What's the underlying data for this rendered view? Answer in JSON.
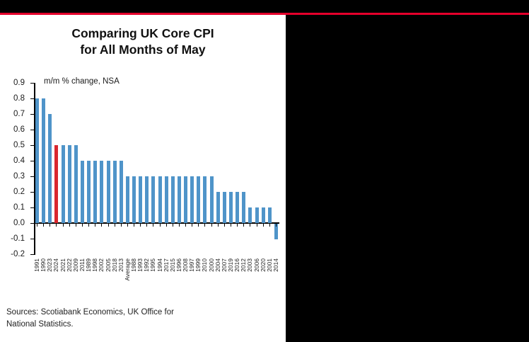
{
  "header": {
    "accent_color": "#e4002b"
  },
  "chart": {
    "title_line1": "Comparing UK Core CPI",
    "title_line2": "for All Months of May",
    "axis_note": "m/m % change, NSA",
    "sources_line1": "Sources: Scotiabank Economics, UK Office for",
    "sources_line2": "National Statistics."
  },
  "chart_data": {
    "type": "bar",
    "title": "Comparing UK Core CPI for All Months of May",
    "xlabel": "",
    "ylabel": "m/m % change, NSA",
    "ylim": [
      -0.2,
      0.9
    ],
    "ytick_step": 0.1,
    "grid": false,
    "legend": false,
    "bar_color": "#4f94c9",
    "highlight_color": "#d9272e",
    "highlight_category": "2024",
    "categories": [
      "1991",
      "1990",
      "2023",
      "2024",
      "2021",
      "2022",
      "2009",
      "2011",
      "1989",
      "1998",
      "2002",
      "2005",
      "2018",
      "2013",
      "Average",
      "1988",
      "1993",
      "1992",
      "1995",
      "1994",
      "2017",
      "2015",
      "1996",
      "2008",
      "1997",
      "1999",
      "2010",
      "2000",
      "2004",
      "2007",
      "2019",
      "2016",
      "2012",
      "2003",
      "2006",
      "2020",
      "2001",
      "2014"
    ],
    "values": [
      0.8,
      0.8,
      0.7,
      0.5,
      0.5,
      0.5,
      0.5,
      0.4,
      0.4,
      0.4,
      0.4,
      0.4,
      0.4,
      0.4,
      0.3,
      0.3,
      0.3,
      0.3,
      0.3,
      0.3,
      0.3,
      0.3,
      0.3,
      0.3,
      0.3,
      0.3,
      0.3,
      0.3,
      0.2,
      0.2,
      0.2,
      0.2,
      0.2,
      0.1,
      0.1,
      0.1,
      0.1,
      -0.1
    ]
  }
}
